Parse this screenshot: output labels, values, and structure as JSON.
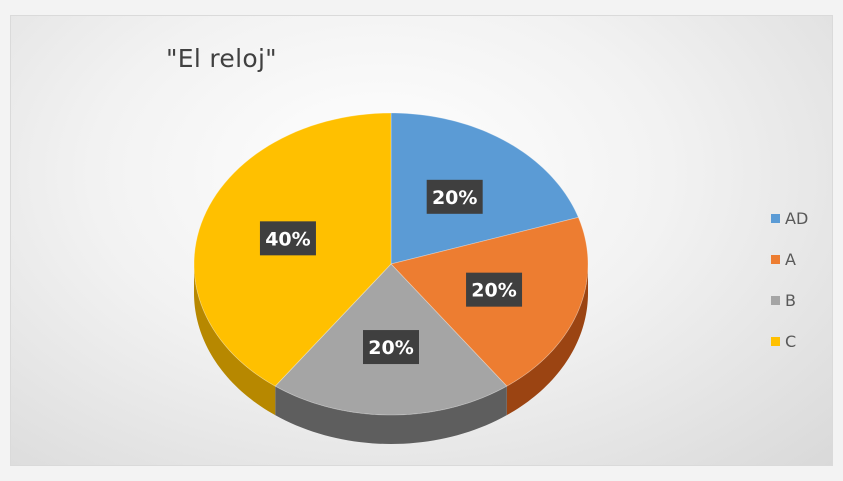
{
  "chart_data": {
    "type": "pie",
    "title": "\"El reloj\"",
    "categories": [
      "AD",
      "A",
      "B",
      "C"
    ],
    "values": [
      20,
      20,
      20,
      40
    ],
    "data_labels": [
      "20%",
      "20%",
      "20%",
      "40%"
    ],
    "colors": [
      "#5b9bd5",
      "#ed7d31",
      "#a5a5a5",
      "#ffc000"
    ],
    "side_colors": [
      "#34649a",
      "#9b4412",
      "#5e5e5e",
      "#b78800"
    ],
    "style": "3d",
    "legend_position": "right"
  }
}
